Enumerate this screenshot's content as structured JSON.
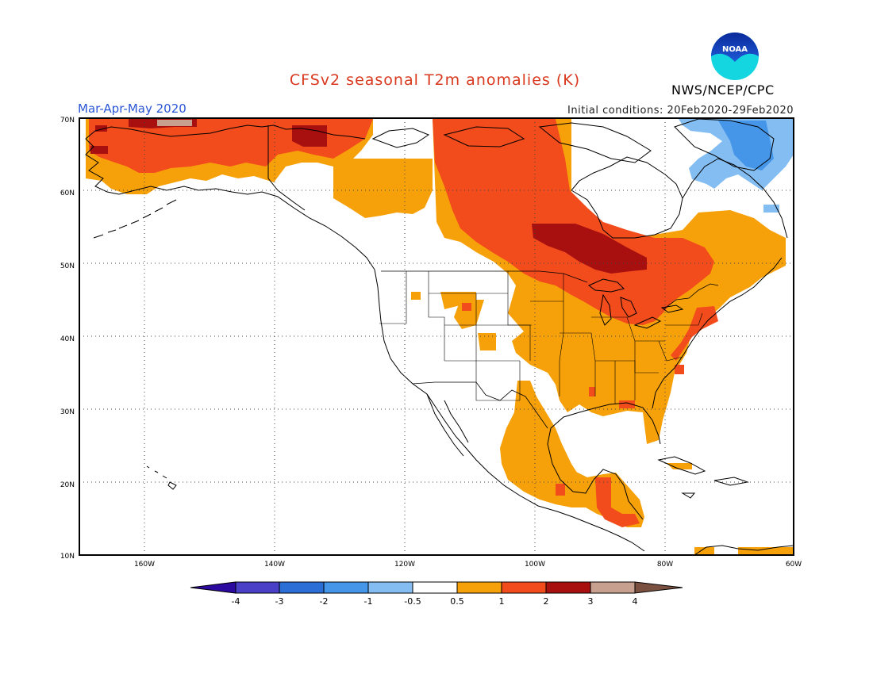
{
  "header": {
    "title": "CFSv2 seasonal T2m anomalies (K)",
    "period": "Mar-Apr-May 2020",
    "initial_conditions": "Initial conditions: 20Feb2020-29Feb2020",
    "agency": "NWS/NCEP/CPC",
    "logo_text": "NOAA"
  },
  "map": {
    "lat_labels": [
      "70N",
      "60N",
      "50N",
      "40N",
      "30N",
      "20N",
      "10N"
    ],
    "lon_labels": [
      "160W",
      "140W",
      "120W",
      "100W",
      "80W",
      "60W"
    ]
  },
  "legend": {
    "ticks": [
      "-4",
      "-3",
      "-2",
      "-1",
      "-0.5",
      "0.5",
      "1",
      "2",
      "3",
      "4"
    ],
    "colors": [
      "#2c0aa0",
      "#4a40c8",
      "#2a6ed6",
      "#4596e8",
      "#84bdf2",
      "#ffffff",
      "#f7a10a",
      "#f24b1c",
      "#a80f0f",
      "#c7a090",
      "#7a5040"
    ]
  },
  "colors": {
    "c05": "#f7a10a",
    "c1": "#f24b1c",
    "c2": "#a80f0f",
    "c3": "#c7a090",
    "cm05": "#84bdf2",
    "cm1": "#4596e8"
  }
}
